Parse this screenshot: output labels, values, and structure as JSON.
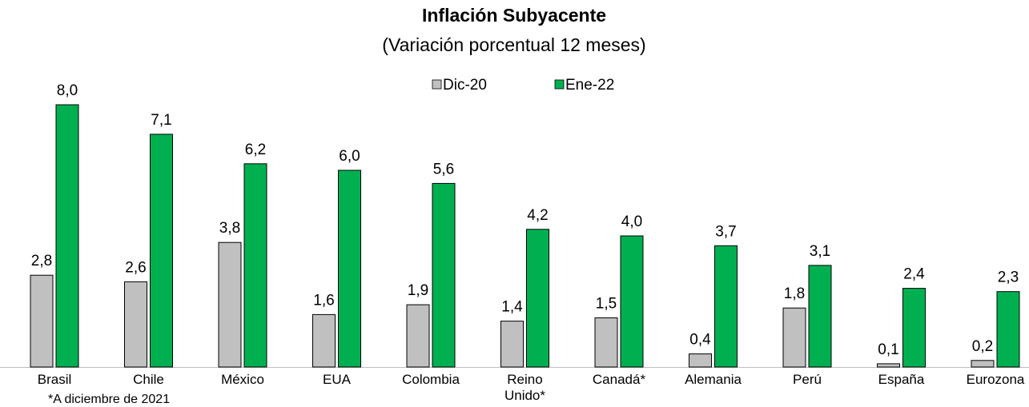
{
  "chart_data": {
    "type": "bar",
    "title": "Inflación Subyacente",
    "subtitle": "(Variación porcentual 12 meses)",
    "categories": [
      "Brasil",
      "Chile",
      "México",
      "EUA",
      "Colombia",
      "Reino Unido*",
      "Canadá*",
      "Alemania",
      "Perú",
      "España",
      "Eurozona"
    ],
    "series": [
      {
        "name": "Dic-20",
        "color": "#c0c0c0",
        "values": [
          2.8,
          2.6,
          3.8,
          1.6,
          1.9,
          1.4,
          1.5,
          0.4,
          1.8,
          0.1,
          0.2
        ],
        "value_labels": [
          "2,8",
          "2,6",
          "3,8",
          "1,6",
          "1,9",
          "1,4",
          "1,5",
          "0,4",
          "1,8",
          "0,1",
          "0,2"
        ]
      },
      {
        "name": "Ene-22",
        "color": "#00b050",
        "values": [
          8.0,
          7.1,
          6.2,
          6.0,
          5.6,
          4.2,
          4.0,
          3.7,
          3.1,
          2.4,
          2.3
        ],
        "value_labels": [
          "8,0",
          "7,1",
          "6,2",
          "6,0",
          "5,6",
          "4,2",
          "4,0",
          "3,7",
          "3,1",
          "2,4",
          "2,3"
        ]
      }
    ],
    "legend": "top",
    "footnote": "*A diciembre de 2021"
  }
}
